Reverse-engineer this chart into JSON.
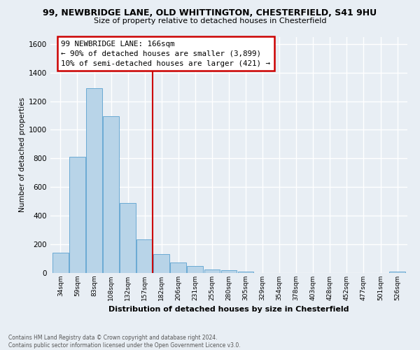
{
  "title": "99, NEWBRIDGE LANE, OLD WHITTINGTON, CHESTERFIELD, S41 9HU",
  "subtitle": "Size of property relative to detached houses in Chesterfield",
  "xlabel": "Distribution of detached houses by size in Chesterfield",
  "ylabel": "Number of detached properties",
  "footnote1": "Contains HM Land Registry data © Crown copyright and database right 2024.",
  "footnote2": "Contains public sector information licensed under the Open Government Licence v3.0.",
  "bar_labels": [
    "34sqm",
    "59sqm",
    "83sqm",
    "108sqm",
    "132sqm",
    "157sqm",
    "182sqm",
    "206sqm",
    "231sqm",
    "255sqm",
    "280sqm",
    "305sqm",
    "329sqm",
    "354sqm",
    "378sqm",
    "403sqm",
    "428sqm",
    "452sqm",
    "477sqm",
    "501sqm",
    "526sqm"
  ],
  "bar_values": [
    140,
    810,
    1290,
    1095,
    490,
    235,
    130,
    75,
    50,
    25,
    18,
    10,
    0,
    0,
    0,
    0,
    0,
    0,
    0,
    0,
    10
  ],
  "bar_color": "#b8d4e8",
  "bar_edge_color": "#6aaad4",
  "vline_color": "#cc0000",
  "annotation_text": "99 NEWBRIDGE LANE: 166sqm\n← 90% of detached houses are smaller (3,899)\n10% of semi-detached houses are larger (421) →",
  "annotation_box_color": "#ffffff",
  "annotation_box_edge": "#cc0000",
  "ylim": [
    0,
    1650
  ],
  "yticks": [
    0,
    200,
    400,
    600,
    800,
    1000,
    1200,
    1400,
    1600
  ],
  "background_color": "#e8eef4",
  "plot_bg_color": "#e8eef4",
  "grid_color": "#ffffff"
}
